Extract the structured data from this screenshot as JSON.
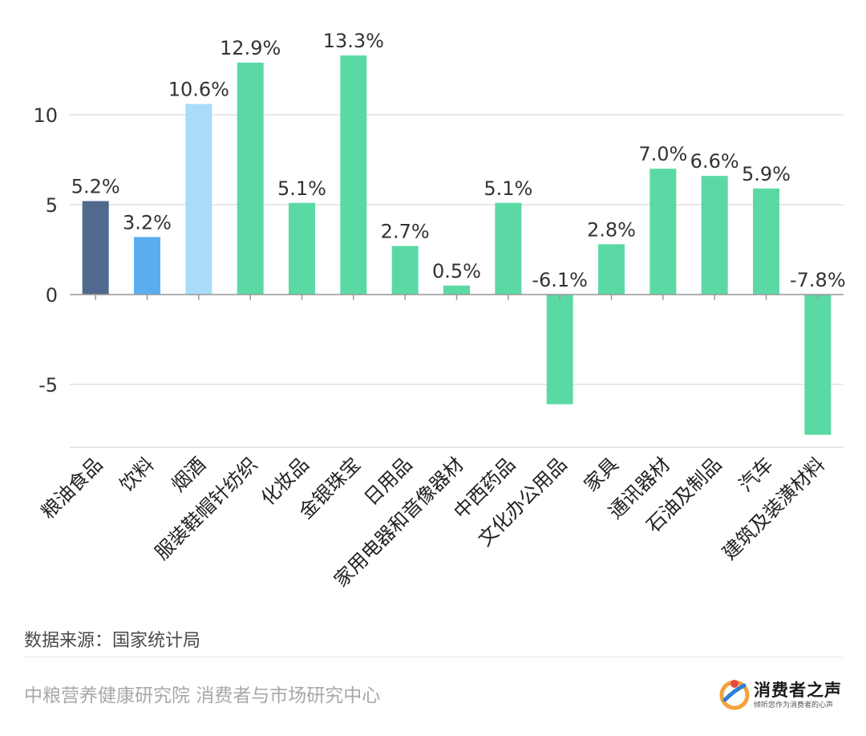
{
  "chart_data": {
    "type": "bar",
    "categories": [
      "粮油食品",
      "饮料",
      "烟酒",
      "服装鞋帽针纺织",
      "化妆品",
      "金银珠宝",
      "日用品",
      "家用电器和音像器材",
      "中西药品",
      "文化办公用品",
      "家具",
      "通讯器材",
      "石油及制品",
      "汽车",
      "建筑及装潢材料"
    ],
    "values": [
      5.2,
      3.2,
      10.6,
      12.9,
      5.1,
      13.3,
      2.7,
      0.5,
      5.1,
      -6.1,
      2.8,
      7.0,
      6.6,
      5.9,
      -7.8
    ],
    "data_labels": [
      "5.2%",
      "3.2%",
      "10.6%",
      "12.9%",
      "5.1%",
      "13.3%",
      "2.7%",
      "0.5%",
      "5.1%",
      "-6.1%",
      "2.8%",
      "7.0%",
      "6.6%",
      "5.9%",
      "-7.8%"
    ],
    "bar_colors": [
      "#51698e",
      "#5aaef0",
      "#a8dcf8",
      "#5bd9a5",
      "#5bd9a5",
      "#5bd9a5",
      "#5bd9a5",
      "#5bd9a5",
      "#5bd9a5",
      "#5bd9a5",
      "#5bd9a5",
      "#5bd9a5",
      "#5bd9a5",
      "#5bd9a5",
      "#5bd9a5"
    ],
    "y_ticks": [
      10,
      5,
      0,
      -5
    ],
    "y_tick_labels": [
      "10",
      "5",
      "0",
      "-5"
    ],
    "ylim": [
      -8.5,
      14
    ],
    "grid": true,
    "legend": "none"
  },
  "source": "数据来源：国家统计局",
  "footer": "中粮营养健康研究院 消费者与市场研究中心",
  "brand": {
    "name": "消费者之声",
    "slogan": "倾听您作为消费者的心声"
  }
}
